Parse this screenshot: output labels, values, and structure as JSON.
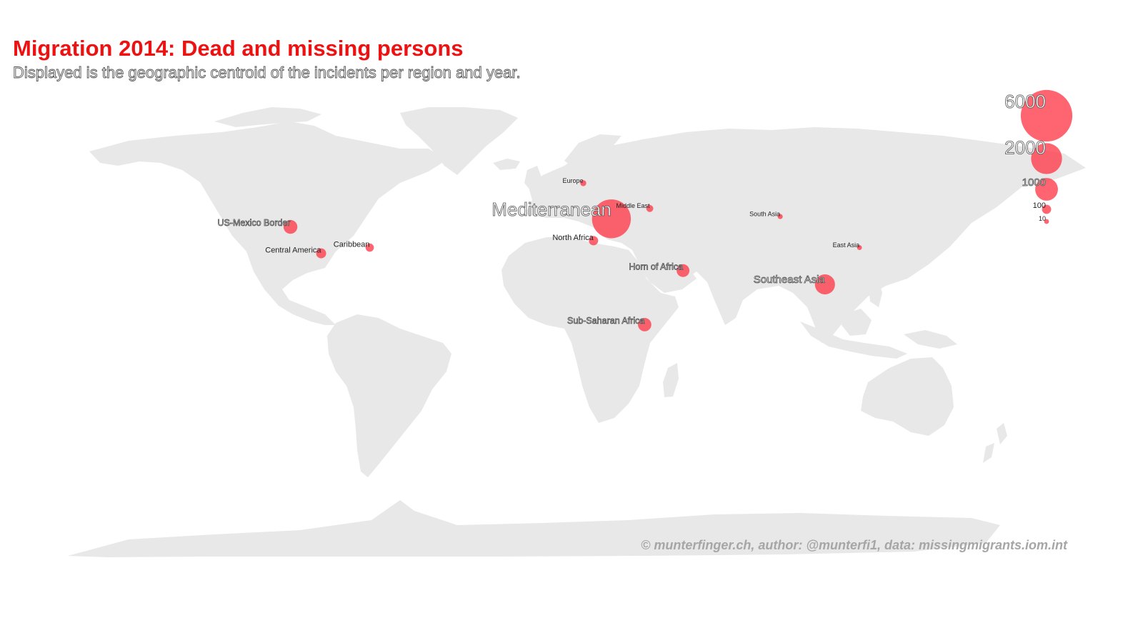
{
  "title": "Migration 2014: Dead and missing persons",
  "subtitle": "Displayed is the geographic centroid of the incidents per region and year.",
  "credit": "© munterfinger.ch, author: @munterfi1, data: missingmigrants.iom.int",
  "colors": {
    "title": "#ee1111",
    "bubble": "#ff3a48",
    "land": "#e8e8e8",
    "credit": "#a6a6a6"
  },
  "regions": [
    {
      "name": "Mediterranean",
      "count": 3280,
      "lon": 17.0,
      "lat": 35.0
    },
    {
      "name": "Southeast Asia",
      "count": 750,
      "lon": 100.5,
      "lat": 6.5
    },
    {
      "name": "US-Mexico Border",
      "count": 307,
      "lon": -108.5,
      "lat": 31.5
    },
    {
      "name": "Horn of Africa",
      "count": 251,
      "lon": 45.0,
      "lat": 12.5
    },
    {
      "name": "Sub-Saharan Africa",
      "count": 281,
      "lon": 30.0,
      "lat": -11.0
    },
    {
      "name": "Central America",
      "count": 130,
      "lon": -96.5,
      "lat": 20.0
    },
    {
      "name": "North Africa",
      "count": 104,
      "lon": 10.0,
      "lat": 25.5
    },
    {
      "name": "Caribbean",
      "count": 75,
      "lon": -77.5,
      "lat": 22.5
    },
    {
      "name": "Middle East",
      "count": 44,
      "lon": 32.0,
      "lat": 39.5
    },
    {
      "name": "Europe",
      "count": 25,
      "lon": 6.0,
      "lat": 50.5
    },
    {
      "name": "East Asia",
      "count": 10,
      "lon": 114.0,
      "lat": 22.5
    },
    {
      "name": "South Asia",
      "count": 12,
      "lon": 83.0,
      "lat": 36.0
    }
  ],
  "legend": {
    "values": [
      6000,
      2000,
      1000,
      100,
      10
    ]
  }
}
